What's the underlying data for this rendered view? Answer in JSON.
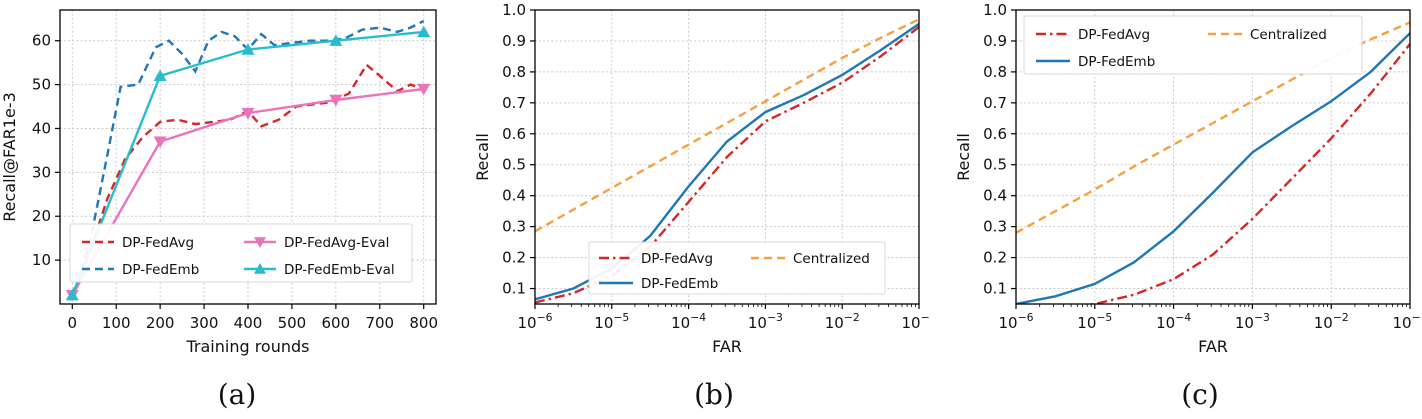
{
  "figure": {
    "captions": [
      "(a)",
      "(b)",
      "(c)"
    ]
  },
  "colors": {
    "red": "#d62728",
    "blue": "#1f77b4",
    "pink": "#e874bb",
    "cyan": "#27bdcc",
    "orange": "#f5a142",
    "grid": "#c9c9c9",
    "axis": "#000000",
    "text": "#111111"
  },
  "chart_data": [
    {
      "id": "a",
      "type": "line",
      "xlabel": "Training rounds",
      "ylabel": "Recall@FAR1e-3",
      "xlim": [
        -28,
        828
      ],
      "ylim": [
        0,
        67
      ],
      "xticks": [
        0,
        100,
        200,
        300,
        400,
        500,
        600,
        700,
        800
      ],
      "yticks": [
        10,
        20,
        30,
        40,
        50,
        60
      ],
      "xtick_format": "int",
      "ytick_format": "int",
      "grid": true,
      "legend": {
        "position": "lower-left",
        "ncol": 2,
        "entries": [
          0,
          1,
          2,
          3
        ]
      },
      "series": [
        {
          "name": "DP-FedAvg",
          "color": "red",
          "dash": "dashed",
          "x": [
            0,
            40,
            80,
            120,
            160,
            200,
            240,
            280,
            320,
            360,
            400,
            430,
            470,
            510,
            550,
            590,
            630,
            670,
            700,
            740,
            770,
            800
          ],
          "y": [
            1,
            12,
            24,
            33,
            38,
            41.5,
            42,
            41,
            41.5,
            42,
            44,
            40.5,
            42,
            45,
            45.5,
            46,
            48,
            54.5,
            52,
            48.5,
            50,
            49
          ]
        },
        {
          "name": "DP-FedEmb",
          "color": "blue",
          "dash": "dashed",
          "x": [
            0,
            40,
            80,
            110,
            150,
            190,
            220,
            250,
            280,
            310,
            340,
            370,
            400,
            430,
            460,
            500,
            540,
            580,
            620,
            660,
            700,
            740,
            770,
            800
          ],
          "y": [
            2,
            14,
            34,
            49.5,
            50,
            58.5,
            60,
            57,
            53,
            60,
            62,
            61,
            58,
            61.5,
            59,
            59.5,
            60,
            60,
            60.5,
            62.5,
            63,
            62,
            63,
            64.5
          ]
        },
        {
          "name": "DP-FedAvg-Eval",
          "color": "pink",
          "dash": "solid",
          "marker": "triangle-down",
          "x": [
            0,
            200,
            400,
            600,
            800
          ],
          "y": [
            2,
            37,
            43.5,
            46.5,
            49
          ]
        },
        {
          "name": "DP-FedEmb-Eval",
          "color": "cyan",
          "dash": "solid",
          "marker": "triangle-up",
          "x": [
            0,
            200,
            400,
            600,
            800
          ],
          "y": [
            2,
            52,
            58,
            60,
            62
          ]
        }
      ]
    },
    {
      "id": "b",
      "type": "line",
      "xscale": "log10",
      "xlabel": "FAR",
      "ylabel": "Recall",
      "xlim": [
        -6,
        -1
      ],
      "ylim": [
        0.05,
        1.0
      ],
      "xticks": [
        -6,
        -5,
        -4,
        -3,
        -2,
        -1
      ],
      "yticks": [
        0.1,
        0.2,
        0.3,
        0.4,
        0.5,
        0.6,
        0.7,
        0.8,
        0.9,
        1.0
      ],
      "xtick_format": "pow10",
      "ytick_format": "fixed1",
      "grid": true,
      "legend": {
        "position": "lower-center",
        "ncol": 2,
        "entries": [
          0,
          1,
          2
        ]
      },
      "series": [
        {
          "name": "DP-FedAvg",
          "color": "red",
          "dash": "dashdot",
          "x": [
            -6,
            -5.5,
            -5,
            -4.5,
            -4,
            -3.5,
            -3,
            -2.5,
            -2,
            -1.5,
            -1
          ],
          "y": [
            0.055,
            0.085,
            0.14,
            0.235,
            0.38,
            0.525,
            0.64,
            0.7,
            0.765,
            0.85,
            0.945
          ]
        },
        {
          "name": "DP-FedEmb",
          "color": "blue",
          "dash": "solid",
          "x": [
            -6,
            -5.5,
            -5,
            -4.5,
            -4,
            -3.5,
            -3,
            -2.5,
            -2,
            -1.5,
            -1
          ],
          "y": [
            0.065,
            0.1,
            0.165,
            0.27,
            0.43,
            0.575,
            0.67,
            0.725,
            0.79,
            0.87,
            0.955
          ]
        },
        {
          "name": "Centralized",
          "color": "orange",
          "dash": "dashed",
          "x": [
            -6,
            -5.5,
            -5,
            -4.5,
            -4,
            -3.5,
            -3,
            -2.5,
            -2,
            -1.5,
            -1
          ],
          "y": [
            0.285,
            0.355,
            0.425,
            0.495,
            0.565,
            0.635,
            0.705,
            0.775,
            0.845,
            0.91,
            0.97
          ]
        }
      ]
    },
    {
      "id": "c",
      "type": "line",
      "xscale": "log10",
      "xlabel": "FAR",
      "ylabel": "Recall",
      "xlim": [
        -6,
        -1
      ],
      "ylim": [
        0.05,
        1.0
      ],
      "xticks": [
        -6,
        -5,
        -4,
        -3,
        -2,
        -1
      ],
      "yticks": [
        0.1,
        0.2,
        0.3,
        0.4,
        0.5,
        0.6,
        0.7,
        0.8,
        0.9,
        1.0
      ],
      "xtick_format": "pow10",
      "ytick_format": "fixed1",
      "grid": true,
      "legend": {
        "position": "upper-left",
        "ncol": 2,
        "entries": [
          0,
          1,
          2
        ]
      },
      "series": [
        {
          "name": "DP-FedAvg",
          "color": "red",
          "dash": "dashdot",
          "x": [
            -6,
            -5.5,
            -5,
            -4.5,
            -4,
            -3.5,
            -3,
            -2.5,
            -2,
            -1.5,
            -1
          ],
          "y": [
            0.02,
            0.03,
            0.05,
            0.08,
            0.13,
            0.21,
            0.325,
            0.455,
            0.585,
            0.73,
            0.89
          ]
        },
        {
          "name": "DP-FedEmb",
          "color": "blue",
          "dash": "solid",
          "x": [
            -6,
            -5.5,
            -5,
            -4.5,
            -4,
            -3.5,
            -3,
            -2.5,
            -2,
            -1.5,
            -1
          ],
          "y": [
            0.05,
            0.075,
            0.115,
            0.185,
            0.285,
            0.41,
            0.54,
            0.625,
            0.705,
            0.8,
            0.925
          ]
        },
        {
          "name": "Centralized",
          "color": "orange",
          "dash": "dashed",
          "x": [
            -6,
            -5.5,
            -5,
            -4.5,
            -4,
            -3.5,
            -3,
            -2.5,
            -2,
            -1.5,
            -1
          ],
          "y": [
            0.28,
            0.35,
            0.42,
            0.495,
            0.565,
            0.635,
            0.705,
            0.775,
            0.845,
            0.905,
            0.96
          ]
        }
      ]
    }
  ]
}
